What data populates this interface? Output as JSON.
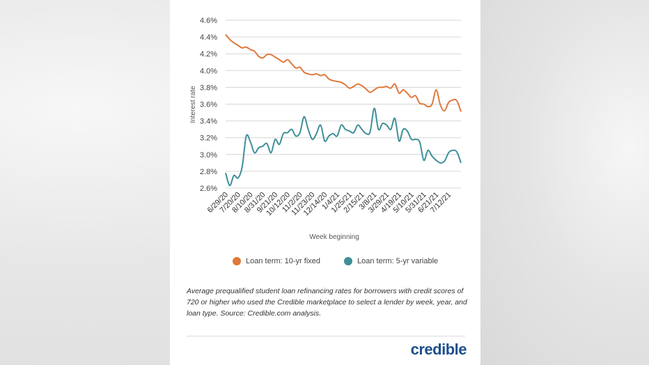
{
  "chart_data": {
    "type": "line",
    "xlabel": "Week beginning",
    "ylabel": "Interest rate",
    "ylim": [
      2.6,
      4.6
    ],
    "yticks": [
      "2.6%",
      "2.8%",
      "3.0%",
      "3.2%",
      "3.4%",
      "3.6%",
      "3.8%",
      "4.0%",
      "4.2%",
      "4.4%",
      "4.6%"
    ],
    "xtick_labels": [
      "6/29/20",
      "7/20/20",
      "8/10/20",
      "8/31/20",
      "9/21/20",
      "10/12/20",
      "11/2/20",
      "11/23/20",
      "12/14/20",
      "1/4/21",
      "1/25/21",
      "2/15/21",
      "3/8/21",
      "3/29/21",
      "4/19/21",
      "5/10/21",
      "5/31/21",
      "6/21/21",
      "7/12/21"
    ],
    "xtick_index": [
      0,
      3,
      6,
      9,
      12,
      15,
      18,
      21,
      24,
      27,
      30,
      33,
      36,
      39,
      42,
      45,
      48,
      51,
      54
    ],
    "grid": "horizontal",
    "legend_position": "bottom",
    "series": [
      {
        "name": "Loan term: 10-yr fixed",
        "color": "#e0783b",
        "values": [
          4.43,
          4.37,
          4.33,
          4.3,
          4.27,
          4.28,
          4.25,
          4.23,
          4.17,
          4.15,
          4.19,
          4.19,
          4.16,
          4.13,
          4.1,
          4.13,
          4.08,
          4.03,
          4.04,
          3.98,
          3.96,
          3.95,
          3.96,
          3.94,
          3.95,
          3.9,
          3.88,
          3.87,
          3.86,
          3.83,
          3.79,
          3.81,
          3.84,
          3.82,
          3.78,
          3.74,
          3.77,
          3.8,
          3.8,
          3.81,
          3.79,
          3.84,
          3.73,
          3.77,
          3.73,
          3.68,
          3.7,
          3.61,
          3.6,
          3.57,
          3.6,
          3.77,
          3.59,
          3.52,
          3.62,
          3.65,
          3.64,
          3.51
        ]
      },
      {
        "name": "Loan term: 5-yr variable",
        "color": "#3e8f99",
        "values": [
          2.78,
          2.63,
          2.75,
          2.72,
          2.85,
          3.22,
          3.15,
          3.02,
          3.08,
          3.1,
          3.13,
          3.02,
          3.18,
          3.12,
          3.25,
          3.26,
          3.3,
          3.22,
          3.26,
          3.45,
          3.3,
          3.18,
          3.25,
          3.35,
          3.16,
          3.22,
          3.25,
          3.22,
          3.35,
          3.3,
          3.28,
          3.26,
          3.35,
          3.3,
          3.25,
          3.27,
          3.55,
          3.3,
          3.37,
          3.35,
          3.3,
          3.43,
          3.16,
          3.3,
          3.28,
          3.18,
          3.18,
          3.15,
          2.93,
          3.05,
          2.98,
          2.93,
          2.9,
          2.92,
          3.02,
          3.05,
          3.03,
          2.9
        ]
      }
    ]
  },
  "caption": "Average prequalified student loan refinancing rates for borrowers with credit scores of 720 or higher who used the Credible marketplace to select a lender by week, year, and loan type. Source: Credible.com analysis.",
  "brand": {
    "logo_text": "credible",
    "logo_color": "#1d4f8c"
  }
}
